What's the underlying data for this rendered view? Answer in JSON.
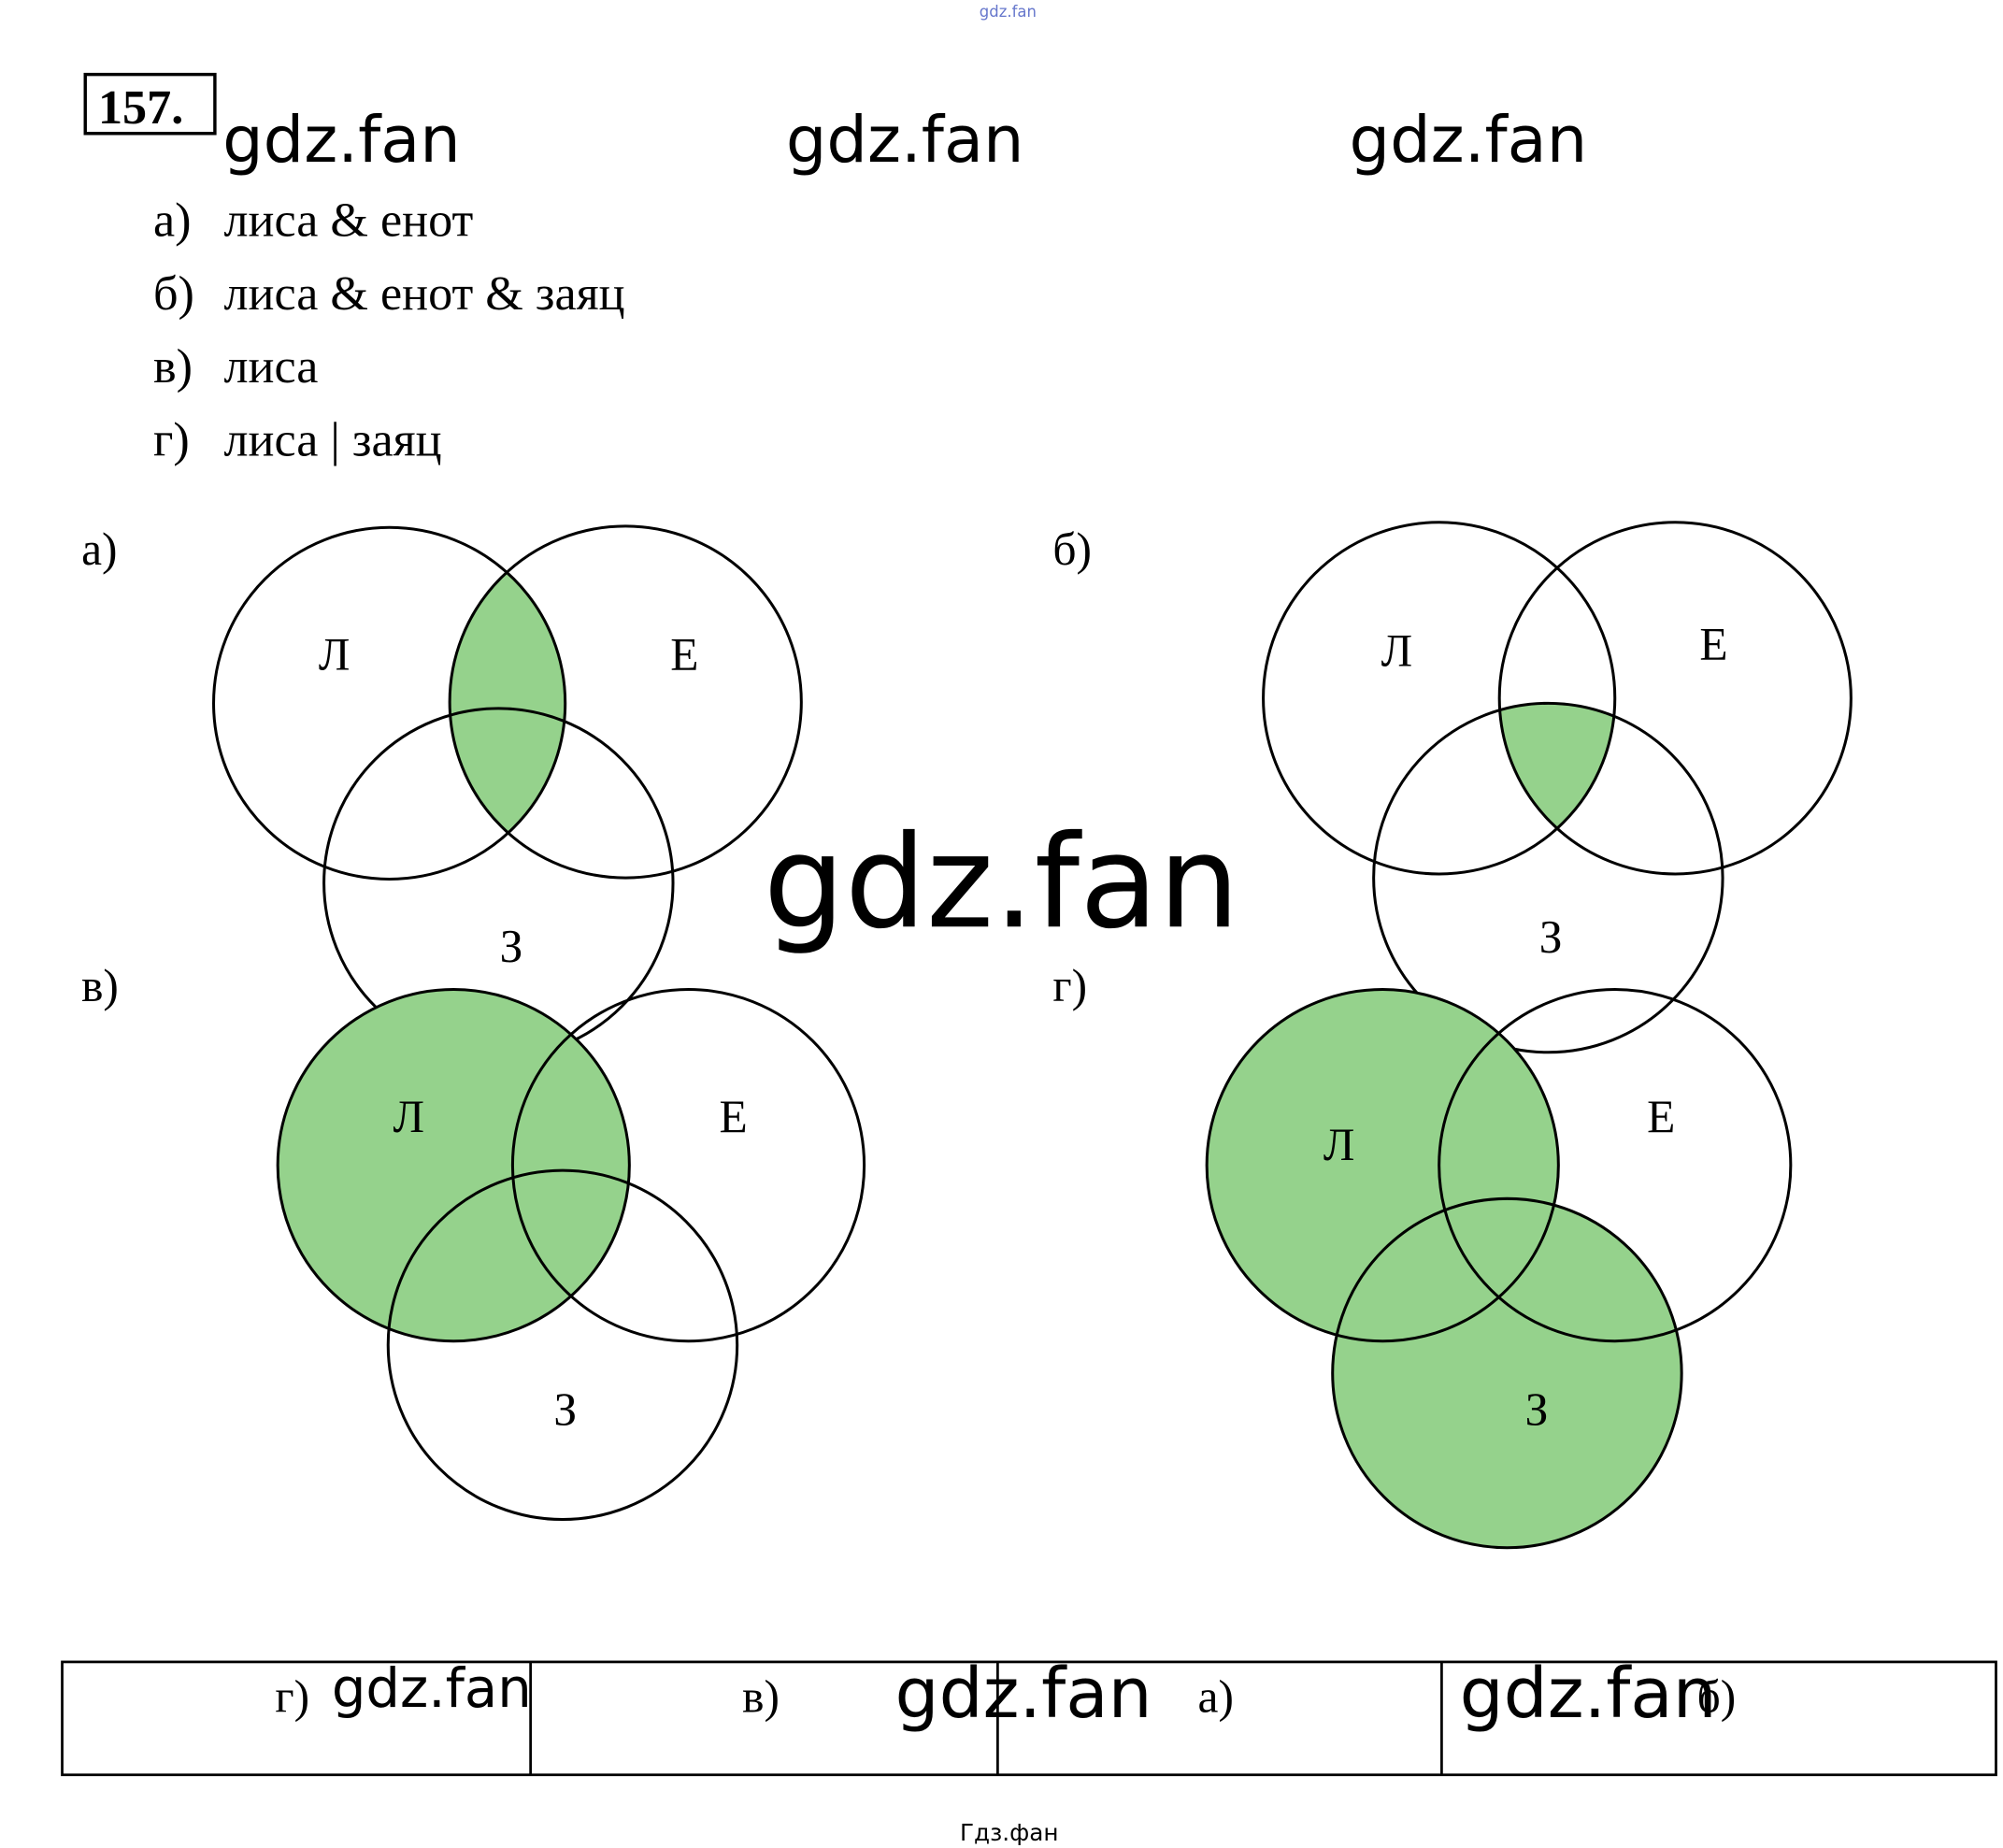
{
  "header": {
    "watermark_top": "gdz.fan",
    "number": "157.",
    "watermarks": [
      "gdz.fan",
      "gdz.fan",
      "gdz.fan"
    ]
  },
  "queries": [
    {
      "letter": "а)",
      "text": "лиса & енот"
    },
    {
      "letter": "б)",
      "text": "лиса & енот & заяц"
    },
    {
      "letter": "в)",
      "text": "лиса"
    },
    {
      "letter": "г)",
      "text": "лиса | заяц"
    }
  ],
  "diagrams": [
    {
      "letter": "а)",
      "circles": [
        "Л",
        "Е",
        "З"
      ]
    },
    {
      "letter": "б)",
      "circles": [
        "Л",
        "Е",
        "З"
      ]
    },
    {
      "letter": "в)",
      "circles": [
        "Л",
        "Е",
        "З"
      ]
    },
    {
      "letter": "г)",
      "circles": [
        "Л",
        "Е",
        "З"
      ]
    }
  ],
  "center_watermark": "gdz.fan",
  "table": {
    "cells": [
      "г)",
      "в)",
      "а)",
      "б)"
    ],
    "watermarks": [
      "gdz.fan",
      "gdz.fan",
      "gdz.fan"
    ]
  },
  "footer": "Гдз.фан"
}
